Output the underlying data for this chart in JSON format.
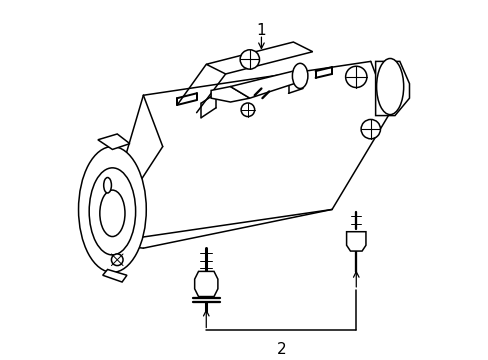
{
  "background_color": "#ffffff",
  "line_color": "#000000",
  "line_width": 1.1,
  "label_1": "1",
  "label_2": "2",
  "fig_width": 4.89,
  "fig_height": 3.6,
  "dpi": 100
}
